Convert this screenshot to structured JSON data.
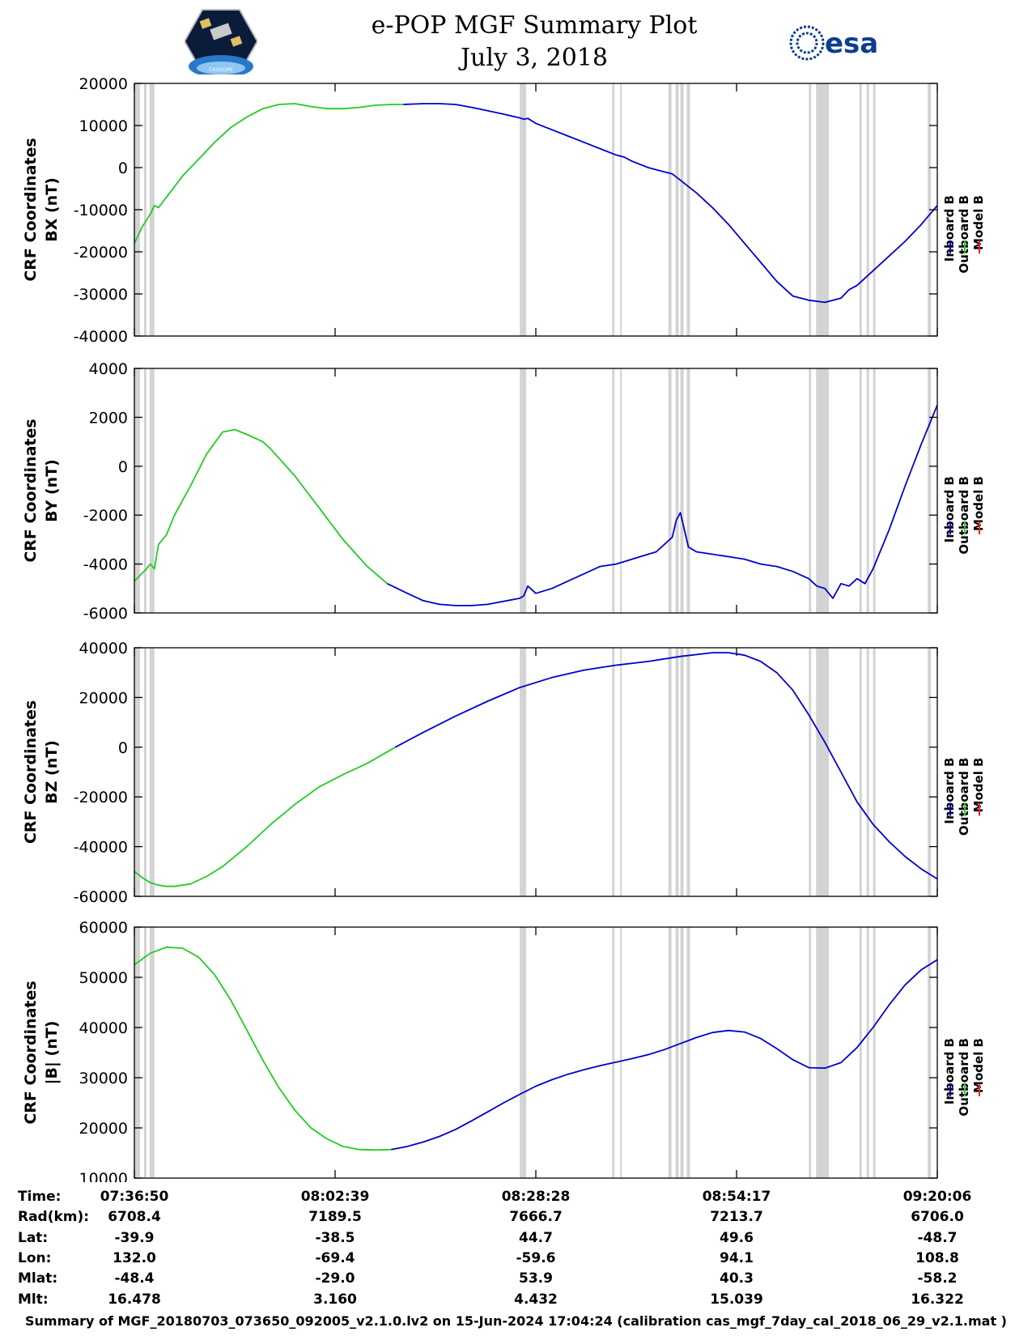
{
  "header": {
    "title_line1": "e-POP MGF Summary Plot",
    "title_line2": "July 3, 2018",
    "logo_left_text": "CASSIOPE",
    "logo_right_text": "esa"
  },
  "legend": {
    "entries": [
      {
        "name": "Inboard B",
        "color": "#0000cc"
      },
      {
        "name": "Outboard B",
        "color": "#22cc22"
      },
      {
        "name": "Model B",
        "color": "#ee2222"
      }
    ]
  },
  "colors": {
    "inboard": "#0000cc",
    "outboard": "#22cc22",
    "model": "#ee2222",
    "gap": "#d3d3d3"
  },
  "chart_data": [
    {
      "type": "line",
      "ylabel_line1": "CRF Coordinates",
      "ylabel_line2": "BX (nT)",
      "ylim": [
        -40000,
        20000
      ],
      "yticks": [
        20000,
        10000,
        0,
        -10000,
        -20000,
        -30000,
        -40000
      ],
      "xlim": [
        0,
        100
      ],
      "series": [
        {
          "name": "Outboard B",
          "x": [
            0,
            1,
            2,
            2.5,
            3,
            4,
            6,
            8,
            10,
            12,
            14,
            16,
            18,
            20,
            22,
            24,
            26,
            28,
            30,
            32,
            33.5
          ],
          "values": [
            -18000,
            -14000,
            -11000,
            -9000,
            -9500,
            -7000,
            -2000,
            2000,
            6000,
            9500,
            12000,
            14000,
            15000,
            15200,
            14500,
            14000,
            14000,
            14300,
            14800,
            15000,
            15000
          ]
        },
        {
          "name": "Inboard B",
          "x": [
            33.5,
            36,
            38,
            40,
            42,
            44,
            46,
            48,
            48.5,
            49,
            50,
            52,
            54,
            56,
            58,
            60,
            61,
            62,
            64,
            66,
            67,
            68,
            70,
            72,
            74,
            76,
            78,
            80,
            82,
            84,
            86,
            88,
            89,
            90,
            92,
            94,
            96,
            98,
            100
          ],
          "values": [
            15000,
            15200,
            15200,
            15000,
            14300,
            13500,
            12700,
            11800,
            11500,
            11700,
            10500,
            9000,
            7500,
            6000,
            4500,
            3000,
            2500,
            1500,
            0,
            -1000,
            -1500,
            -3000,
            -6000,
            -9500,
            -13500,
            -18000,
            -22500,
            -27000,
            -30500,
            -31500,
            -32000,
            -31000,
            -29000,
            -28000,
            -24500,
            -21000,
            -17500,
            -13500,
            -9000
          ]
        }
      ]
    },
    {
      "type": "line",
      "ylabel_line1": "CRF Coordinates",
      "ylabel_line2": "BY (nT)",
      "ylim": [
        -6000,
        4000
      ],
      "yticks": [
        4000,
        2000,
        0,
        -2000,
        -4000,
        -6000
      ],
      "xlim": [
        0,
        100
      ],
      "series": [
        {
          "name": "Outboard B",
          "x": [
            0,
            1.5,
            2,
            2.5,
            3,
            4,
            5,
            7,
            9,
            11,
            12.5,
            14,
            16,
            17,
            20,
            23,
            26,
            29,
            31.5
          ],
          "values": [
            -4700,
            -4200,
            -4000,
            -4200,
            -3200,
            -2800,
            -2000,
            -800,
            500,
            1400,
            1500,
            1300,
            1000,
            700,
            -400,
            -1700,
            -3000,
            -4100,
            -4800
          ]
        },
        {
          "name": "Inboard B",
          "x": [
            31.5,
            34,
            36,
            38,
            40,
            42,
            44,
            48,
            48.5,
            49,
            50,
            51,
            52,
            54,
            56,
            58,
            60,
            61,
            63,
            65,
            67,
            67.5,
            68,
            69,
            70,
            72,
            74,
            76,
            78,
            80,
            82,
            84,
            85,
            86,
            87,
            88,
            89,
            90,
            91,
            92,
            94,
            96,
            98,
            100
          ],
          "values": [
            -4800,
            -5200,
            -5500,
            -5650,
            -5700,
            -5700,
            -5650,
            -5400,
            -5300,
            -4900,
            -5200,
            -5100,
            -5000,
            -4700,
            -4400,
            -4100,
            -4000,
            -3900,
            -3700,
            -3500,
            -2900,
            -2200,
            -1900,
            -3300,
            -3500,
            -3600,
            -3700,
            -3800,
            -4000,
            -4100,
            -4300,
            -4600,
            -4900,
            -5000,
            -5400,
            -4800,
            -4900,
            -4600,
            -4800,
            -4200,
            -2600,
            -800,
            900,
            2500
          ]
        }
      ]
    },
    {
      "type": "line",
      "ylabel_line1": "CRF Coordinates",
      "ylabel_line2": "BZ (nT)",
      "ylim": [
        -60000,
        40000
      ],
      "yticks": [
        40000,
        20000,
        0,
        -20000,
        -40000,
        -60000
      ],
      "xlim": [
        0,
        100
      ],
      "series": [
        {
          "name": "Outboard B",
          "x": [
            0,
            1,
            2,
            3,
            4,
            5,
            7,
            9,
            11,
            14,
            17,
            20,
            23,
            26,
            29,
            32.5
          ],
          "values": [
            -50000,
            -52500,
            -54500,
            -55500,
            -56000,
            -56000,
            -55000,
            -52000,
            -48000,
            -40000,
            -31000,
            -23000,
            -16000,
            -11000,
            -6500,
            0
          ]
        },
        {
          "name": "Inboard B",
          "x": [
            32.5,
            36,
            40,
            44,
            48,
            52,
            56,
            60,
            64,
            68,
            72,
            74,
            76,
            78,
            80,
            82,
            84,
            86,
            88,
            90,
            92,
            94,
            96,
            98,
            100
          ],
          "values": [
            0,
            6000,
            12500,
            18500,
            24000,
            28000,
            31000,
            33000,
            34500,
            36500,
            38000,
            38000,
            37000,
            34500,
            30000,
            23000,
            13000,
            2000,
            -10000,
            -22000,
            -31000,
            -38000,
            -44000,
            -49000,
            -53000
          ]
        }
      ]
    },
    {
      "type": "line",
      "ylabel_line1": "CRF Coordinates",
      "ylabel_line2": "|B| (nT)",
      "ylim": [
        10000,
        60000
      ],
      "yticks": [
        60000,
        50000,
        40000,
        30000,
        20000,
        10000
      ],
      "xlim": [
        0,
        100
      ],
      "series": [
        {
          "name": "Outboard B",
          "x": [
            0,
            2,
            4,
            6,
            8,
            10,
            12,
            14,
            16,
            18,
            20,
            22,
            24,
            26,
            28,
            30,
            32
          ],
          "values": [
            52500,
            54800,
            56000,
            55800,
            54000,
            50500,
            45500,
            39500,
            33500,
            28000,
            23500,
            20000,
            17800,
            16300,
            15700,
            15600,
            15700
          ]
        },
        {
          "name": "Inboard B",
          "x": [
            32,
            34,
            36,
            38,
            40,
            42,
            44,
            46,
            48,
            50,
            52,
            54,
            56,
            58,
            60,
            62,
            64,
            66,
            68,
            70,
            72,
            74,
            76,
            78,
            80,
            82,
            84,
            86,
            88,
            90,
            92,
            94,
            96,
            98,
            100
          ],
          "values": [
            15700,
            16300,
            17200,
            18300,
            19700,
            21400,
            23200,
            25000,
            26700,
            28300,
            29600,
            30700,
            31600,
            32400,
            33100,
            33800,
            34600,
            35600,
            36800,
            38000,
            39000,
            39400,
            39100,
            37800,
            35800,
            33600,
            32000,
            31900,
            33000,
            36000,
            40000,
            44500,
            48500,
            51500,
            53500
          ]
        }
      ]
    }
  ],
  "data_gaps": [
    [
      0,
      0.7
    ],
    [
      1.2,
      1.5
    ],
    [
      1.9,
      2.5
    ],
    [
      48.0,
      48.8
    ],
    [
      59.5,
      59.8
    ],
    [
      60.5,
      60.7
    ],
    [
      66.5,
      66.9
    ],
    [
      67.4,
      67.8
    ],
    [
      68.0,
      68.4
    ],
    [
      68.8,
      69.2
    ],
    [
      84.0,
      84.3
    ],
    [
      84.9,
      86.5
    ],
    [
      90.3,
      90.6
    ],
    [
      91.2,
      91.5
    ],
    [
      92.0,
      92.3
    ],
    [
      98.8,
      99.2
    ]
  ],
  "info_table": {
    "row_labels": [
      "Time:",
      "Rad(km):",
      "Lat:",
      "Lon:",
      "Mlat:",
      "Mlt:"
    ],
    "columns": [
      {
        "values": [
          "07:36:50",
          "6708.4",
          "-39.9",
          "132.0",
          "-48.4",
          "16.478"
        ]
      },
      {
        "values": [
          "08:02:39",
          "7189.5",
          "-38.5",
          "-69.4",
          "-29.0",
          "3.160"
        ]
      },
      {
        "values": [
          "08:28:28",
          "7666.7",
          "44.7",
          "-59.6",
          "53.9",
          "4.432"
        ]
      },
      {
        "values": [
          "08:54:17",
          "7213.7",
          "49.6",
          "94.1",
          "40.3",
          "15.039"
        ]
      },
      {
        "values": [
          "09:20:06",
          "6706.0",
          "-48.7",
          "108.8",
          "-58.2",
          "16.322"
        ]
      }
    ]
  },
  "footer": "Summary of MGF_20180703_073650_092005_v2.1.0.lv2 on 15-Jun-2024 17:04:24 (calibration cas_mgf_7day_cal_2018_06_29_v2.1.mat )"
}
